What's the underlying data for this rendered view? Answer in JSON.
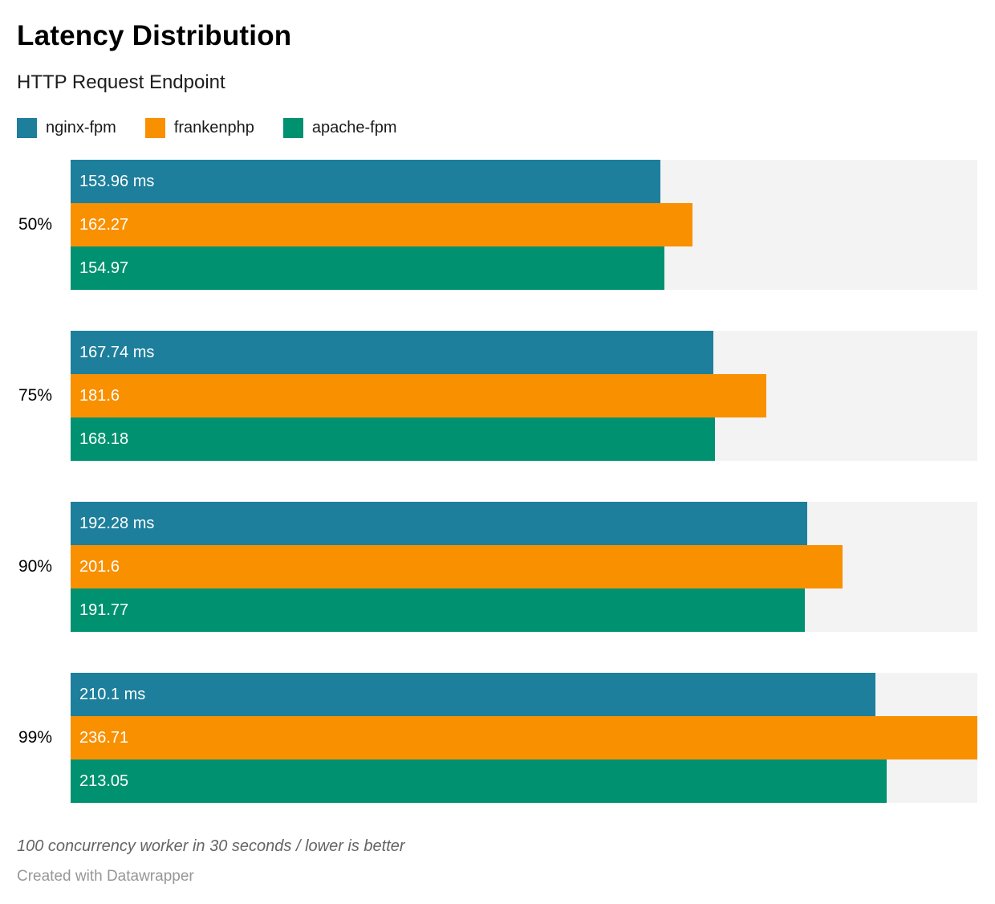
{
  "header": {
    "title": "Latency Distribution",
    "subtitle": "HTTP Request Endpoint"
  },
  "legend": [
    {
      "label": "nginx-fpm",
      "color": "#1d7f9c"
    },
    {
      "label": "frankenphp",
      "color": "#f99000"
    },
    {
      "label": "apache-fpm",
      "color": "#009270"
    }
  ],
  "chart_data": {
    "type": "bar",
    "orientation": "horizontal",
    "title": "Latency Distribution",
    "subtitle": "HTTP Request Endpoint",
    "xlabel": "",
    "ylabel": "",
    "unit": "ms",
    "xlim": [
      0,
      236.71
    ],
    "xmax": 236.71,
    "grid": false,
    "legend_position": "top",
    "track_color": "#f3f3f3",
    "categories": [
      "50%",
      "75%",
      "90%",
      "99%"
    ],
    "series": [
      {
        "name": "nginx-fpm",
        "color": "#1d7f9c",
        "values": [
          153.96,
          167.74,
          192.28,
          210.1
        ],
        "labels": [
          "153.96 ms",
          "167.74 ms",
          "192.28 ms",
          "210.1 ms"
        ]
      },
      {
        "name": "frankenphp",
        "color": "#f99000",
        "values": [
          162.27,
          181.6,
          201.6,
          236.71
        ],
        "labels": [
          "162.27",
          "181.6",
          "201.6",
          "236.71"
        ]
      },
      {
        "name": "apache-fpm",
        "color": "#009270",
        "values": [
          154.97,
          168.18,
          191.77,
          213.05
        ],
        "labels": [
          "154.97",
          "168.18",
          "191.77",
          "213.05"
        ]
      }
    ]
  },
  "footer": {
    "note": "100 concurrency worker in 30 seconds / lower is better",
    "attribution": "Created with Datawrapper"
  }
}
